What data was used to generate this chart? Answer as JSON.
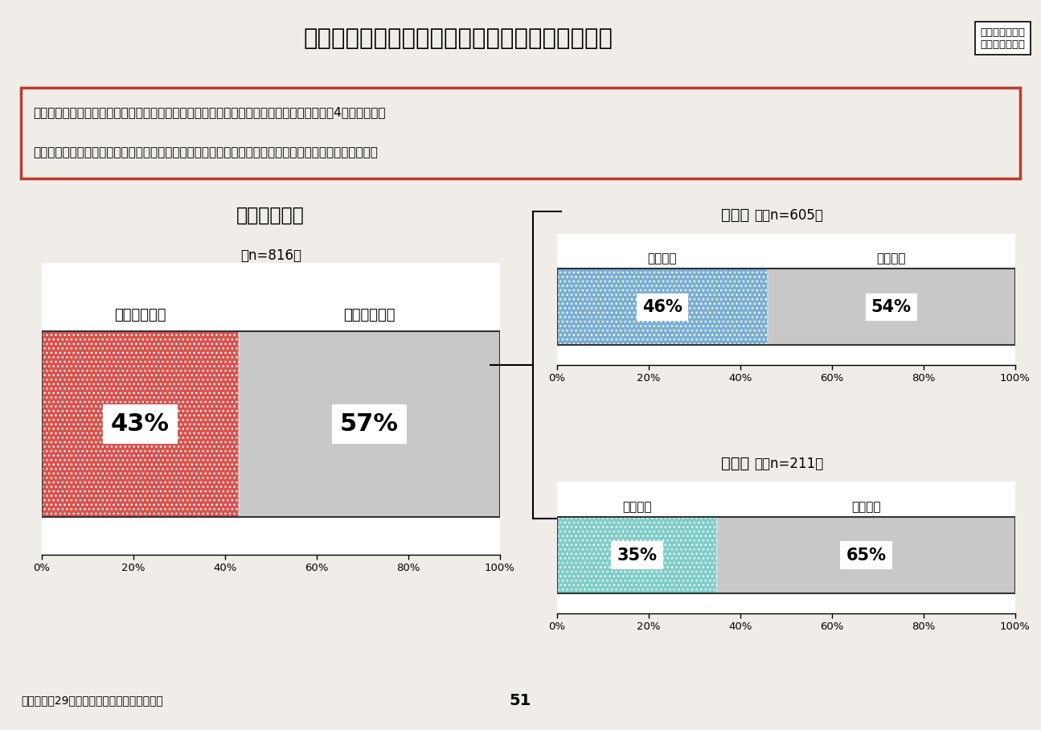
{
  "title": "看取り患者に対する対応方針の有無（療養病棟）",
  "top_right_text": "診調組　入－１\n２９．１０．５",
  "bullet_points": [
    "療養病棟のうち、看取りの患者に対する対応方針を定めている病棟の割合は、全体の約4割であった。",
    "対応方針を定めている病棟は、療養１の病棟の方が、療養２の病棟に比べ、やや多い傾向にあった。"
  ],
  "main_chart": {
    "title": "療養病棟全体",
    "n": "（n=816）",
    "label_yes": "対応方針あり",
    "label_no": "対応方針なし",
    "pct_yes": 43,
    "pct_no": 57,
    "color_yes": "#d9534f",
    "color_no": "#c8c8c8"
  },
  "sub_chart1": {
    "title": "療養１",
    "n": "（n=605）",
    "label_yes": "方針あり",
    "label_no": "方針なし",
    "pct_yes": 46,
    "pct_no": 54,
    "color_yes": "#7bafd4",
    "color_no": "#c8c8c8"
  },
  "sub_chart2": {
    "title": "療養２",
    "n": "（n=211）",
    "label_yes": "方針あり",
    "label_no": "方針なし",
    "pct_yes": 35,
    "pct_no": 65,
    "color_yes": "#7ececa",
    "color_no": "#c8c8c8"
  },
  "source_text": "出典：平成29年入院医療等の調査（病棟票）",
  "page_number": "51",
  "bg_color": "#f0ede8",
  "chart_bg": "#ffffff",
  "title_bg": "#e8e4dc",
  "border_color": "#c0392b",
  "text_color": "#000000"
}
